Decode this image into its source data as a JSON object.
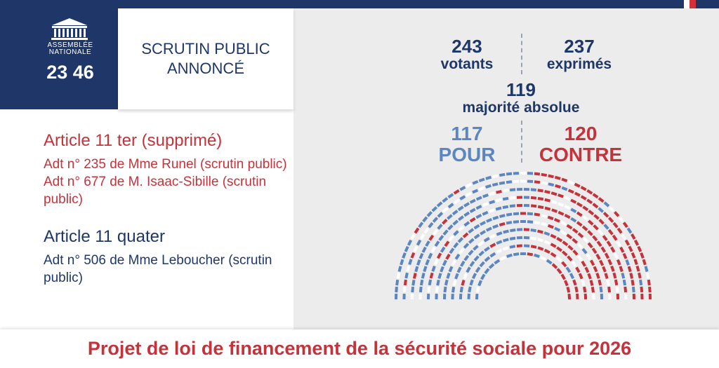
{
  "header": {
    "logo": [
      "ASSEMBLÉE",
      "NATIONALE"
    ],
    "time": "23 46",
    "status": [
      "SCRUTIN PUBLIC",
      "ANNONCÉ"
    ]
  },
  "agenda": [
    {
      "article": "Article 11 ter (supprimé)",
      "amendments": [
        "Adt n° 235 de Mme Runel (scrutin public)",
        "Adt n° 677 de M. Isaac-Sibille (scrutin public)"
      ]
    },
    {
      "article": "Article 11 quater",
      "amendments": [
        "Adt n° 506 de Mme Leboucher (scrutin public)"
      ]
    }
  ],
  "results": {
    "votants": {
      "number": "243",
      "label": "votants"
    },
    "exprimes": {
      "number": "237",
      "label": "exprimés"
    },
    "majorite": {
      "number": "119",
      "label": "majorité absolue"
    },
    "pour": {
      "number": "117",
      "label": "POUR"
    },
    "contre": {
      "number": "120",
      "label": "CONTRE"
    }
  },
  "footer": "Projet de loi de financement de la sécurité sociale pour 2026"
}
